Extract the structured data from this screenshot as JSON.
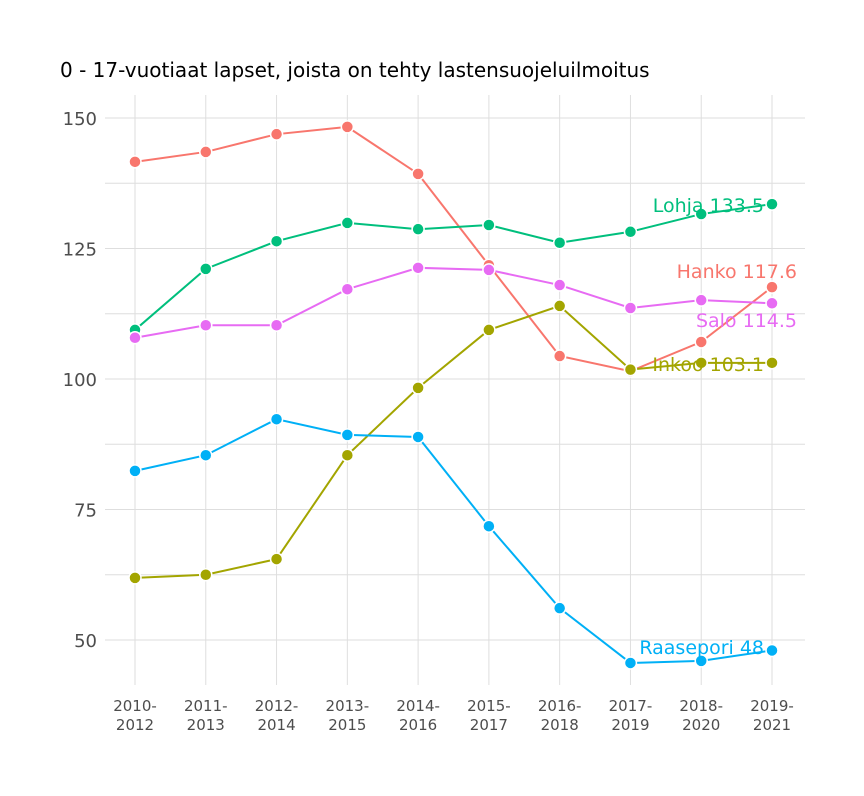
{
  "chart_data": {
    "type": "line",
    "title": "0 - 17-vuotiaat lapset, joista on tehty lastensuojeluilmoitus",
    "xlabel": "",
    "ylabel": "",
    "categories": [
      "2010-2012",
      "2011-2013",
      "2012-2014",
      "2013-2015",
      "2014-2016",
      "2015-2017",
      "2016-2018",
      "2017-2019",
      "2018-2020",
      "2019-2021"
    ],
    "yticks": [
      50,
      75,
      100,
      125,
      150
    ],
    "ylim": [
      42,
      153
    ],
    "grid": true,
    "legend": "none (end labels)",
    "series": [
      {
        "name": "Hanko",
        "label": "Hanko 117.6",
        "color": "#F8766D",
        "values": [
          141.6,
          143.5,
          146.9,
          148.3,
          139.3,
          121.8,
          104.4,
          101.5,
          107.1,
          117.6
        ]
      },
      {
        "name": "Inkoo",
        "label": "Inkoo 103.1",
        "color": "#A3A500",
        "values": [
          61.9,
          62.5,
          65.5,
          85.4,
          98.3,
          109.4,
          114.0,
          101.8,
          103.1,
          103.1
        ]
      },
      {
        "name": "Lohja",
        "label": "Lohja 133.5",
        "color": "#00BF7D",
        "values": [
          109.4,
          121.1,
          126.4,
          129.9,
          128.7,
          129.5,
          126.1,
          128.2,
          131.6,
          133.5
        ]
      },
      {
        "name": "Raasepori",
        "label": "Raasepori 48",
        "color": "#00B0F6",
        "values": [
          82.4,
          85.4,
          92.3,
          89.3,
          88.9,
          71.8,
          56.1,
          45.6,
          46.0,
          48.0
        ]
      },
      {
        "name": "Salo",
        "label": "Salo 114.5",
        "color": "#E76BF3",
        "values": [
          107.9,
          110.3,
          110.3,
          117.2,
          121.3,
          120.9,
          118.0,
          113.6,
          115.1,
          114.5
        ]
      }
    ]
  }
}
